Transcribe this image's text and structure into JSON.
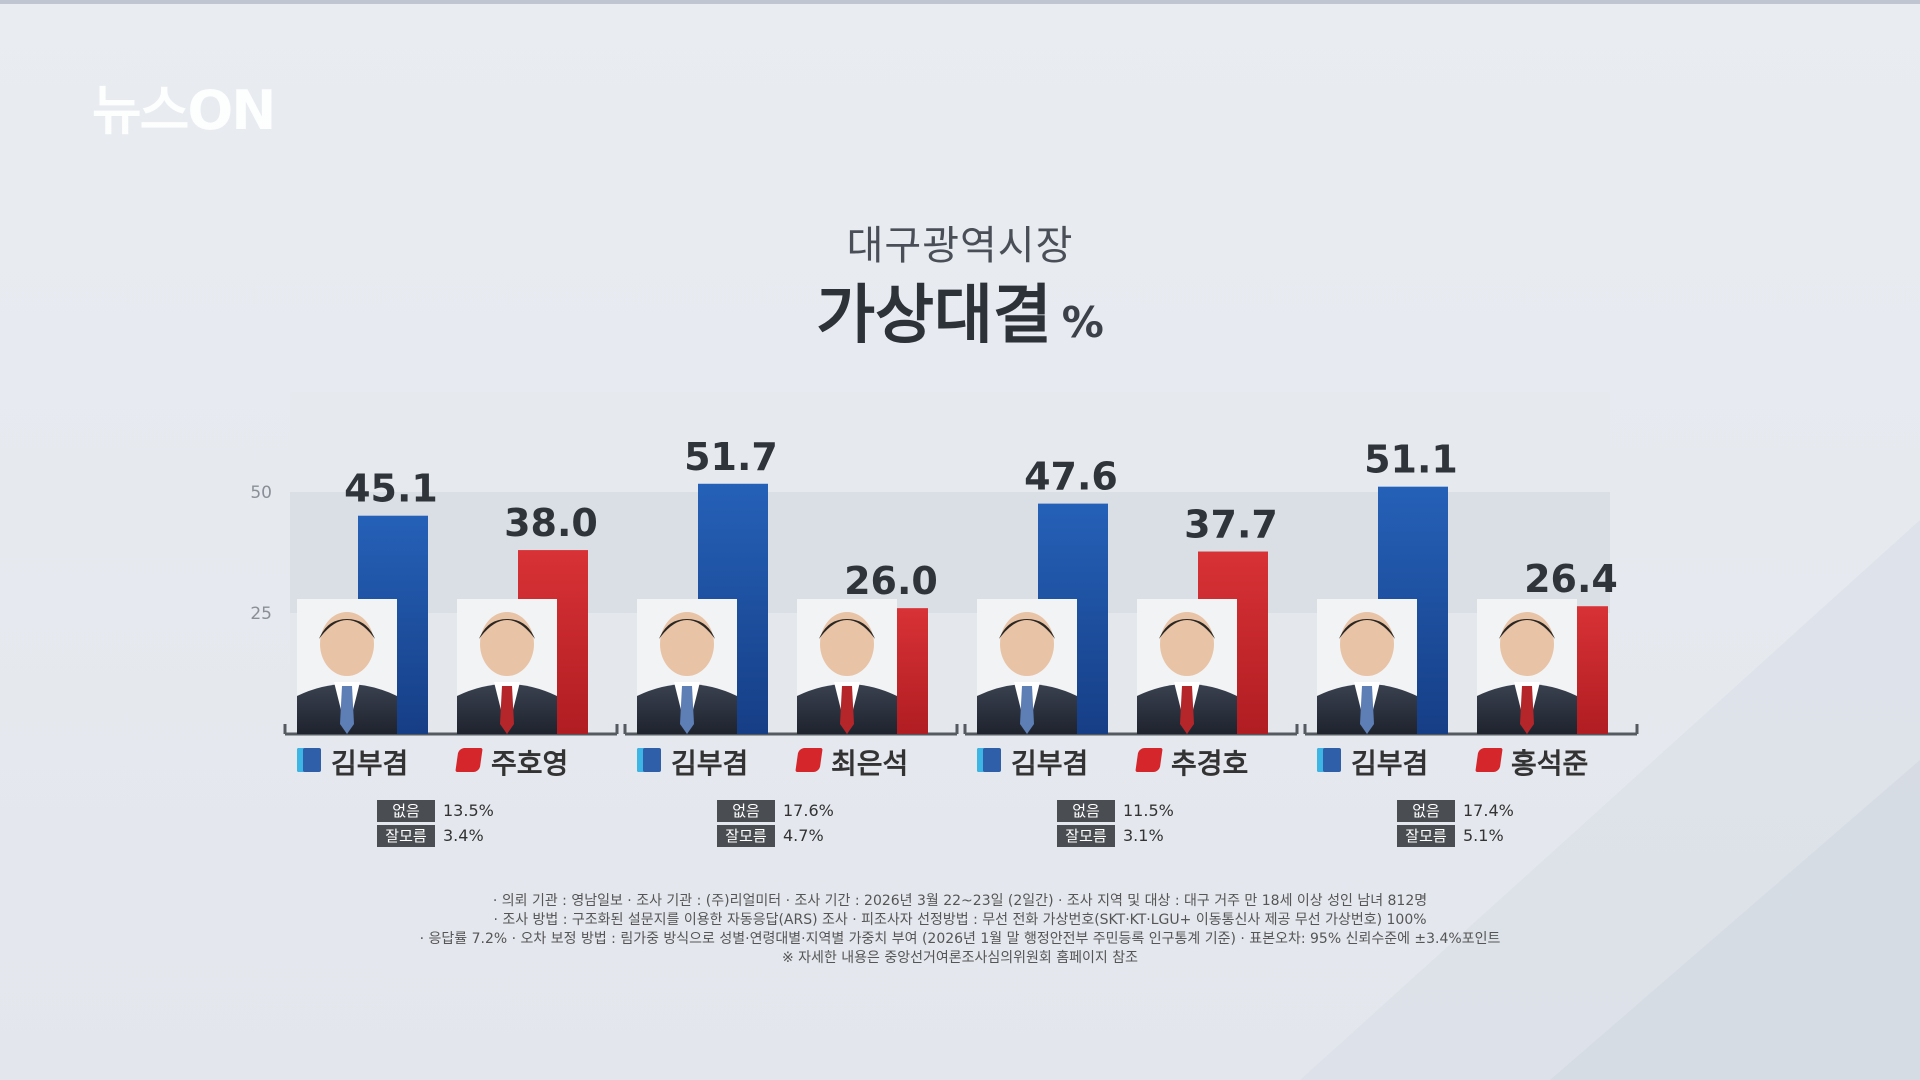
{
  "logo": "뉴스ON",
  "title_line1": "대구광역시장",
  "title_line2": "가상대결",
  "title_unit": "%",
  "colors": {
    "blue": "#1f4f9e",
    "red": "#c9262b",
    "axis": "#555a61"
  },
  "chart_data": {
    "type": "bar",
    "title": "대구광역시장 가상대결",
    "unit": "%",
    "y_ticks": [
      25,
      50
    ],
    "ylim": [
      0,
      70
    ],
    "grid": true,
    "matchups": [
      {
        "candidates": [
          {
            "name": "김부겸",
            "party_color": "blue",
            "value": 45.1,
            "label": "45.1"
          },
          {
            "name": "주호영",
            "party_color": "red",
            "value": 38.0,
            "label": "38.0"
          }
        ],
        "none": "13.5%",
        "dont_know": "3.4%"
      },
      {
        "candidates": [
          {
            "name": "김부겸",
            "party_color": "blue",
            "value": 51.7,
            "label": "51.7"
          },
          {
            "name": "최은석",
            "party_color": "red",
            "value": 26.0,
            "label": "26.0"
          }
        ],
        "none": "17.6%",
        "dont_know": "4.7%"
      },
      {
        "candidates": [
          {
            "name": "김부겸",
            "party_color": "blue",
            "value": 47.6,
            "label": "47.6"
          },
          {
            "name": "추경호",
            "party_color": "red",
            "value": 37.7,
            "label": "37.7"
          }
        ],
        "none": "11.5%",
        "dont_know": "3.1%"
      },
      {
        "candidates": [
          {
            "name": "김부겸",
            "party_color": "blue",
            "value": 51.1,
            "label": "51.1"
          },
          {
            "name": "홍석준",
            "party_color": "red",
            "value": 26.4,
            "label": "26.4"
          }
        ],
        "none": "17.4%",
        "dont_know": "5.1%"
      }
    ]
  },
  "stat_labels": {
    "none": "없음",
    "dont_know": "잘모름"
  },
  "footnotes": [
    "· 의뢰 기관 : 영남일보  · 조사 기관 : (주)리얼미터  · 조사 기간 : 2026년 3월 22~23일 (2일간)  · 조사 지역 및 대상 : 대구 거주 만 18세 이상 성인 남녀 812명",
    "· 조사 방법 : 구조화된 설문지를 이용한 자동응답(ARS) 조사  · 피조사자 선정방법 : 무선 전화 가상번호(SKT·KT·LGU+ 이동통신사 제공 무선 가상번호) 100%",
    "· 응답률 7.2%  · 오차 보정 방법 : 림가중 방식으로 성별·연령대별·지역별 가중치 부여 (2026년 1월 말 행정안전부 주민등록 인구통계 기준)  · 표본오차: 95% 신뢰수준에 ±3.4%포인트",
    "※ 자세한 내용은 중앙선거여론조사심의위원회 홈페이지 참조"
  ]
}
